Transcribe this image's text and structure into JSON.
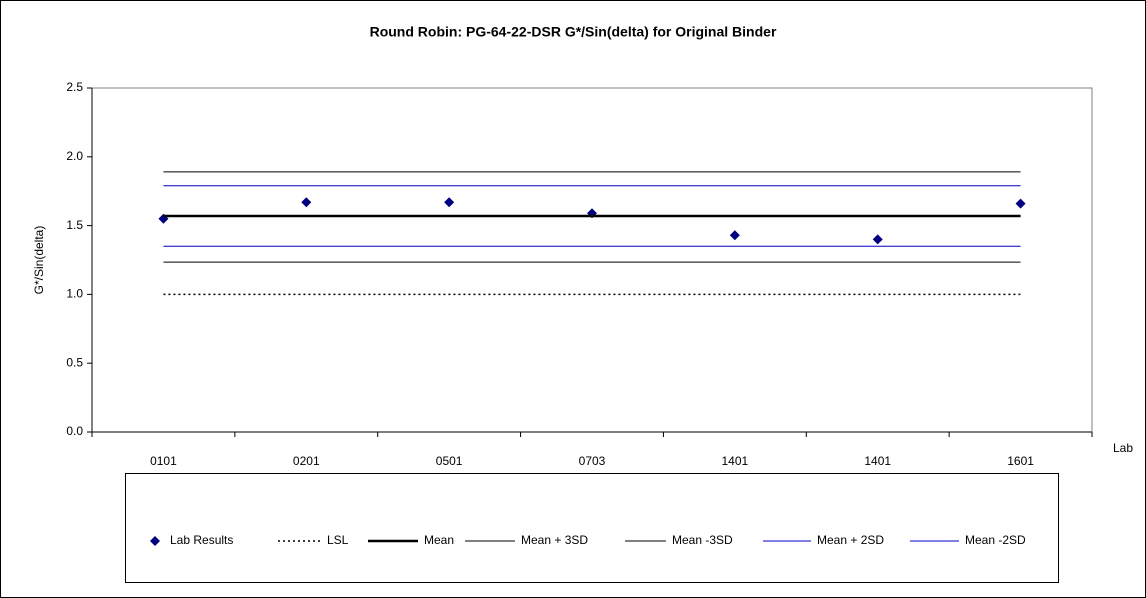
{
  "chart_data": {
    "type": "line",
    "title": "Round Robin: PG-64-22-DSR G*/Sin(delta) for Original Binder",
    "y_label": "G*/Sin(delta)",
    "x_label": "Lab",
    "categories": [
      "0101",
      "0201",
      "0501",
      "0703",
      "1401",
      "1401",
      "1601"
    ],
    "ylim": [
      0,
      2.5
    ],
    "yticks": [
      {
        "value": 0,
        "label": "0.0"
      },
      {
        "value": 0.5,
        "label": "0.5"
      },
      {
        "value": 1,
        "label": "1.0"
      },
      {
        "value": 1.5,
        "label": "1.5"
      },
      {
        "value": 2,
        "label": "2.0"
      },
      {
        "value": 2.5,
        "label": "2.5"
      }
    ],
    "legend": "bottom",
    "series": [
      {
        "name": "Lab Results",
        "color": "#000080",
        "style": "markers",
        "values": [
          1.55,
          1.67,
          1.67,
          1.59,
          1.43,
          1.4,
          1.66
        ]
      },
      {
        "name": "LSL",
        "color": "#000000",
        "style": "dotted",
        "values": [
          1,
          1,
          1,
          1,
          1,
          1,
          1
        ]
      },
      {
        "name": "Mean",
        "color": "#000000",
        "style": "bold",
        "values": [
          1.57,
          1.57,
          1.57,
          1.57,
          1.57,
          1.57,
          1.57
        ]
      },
      {
        "name": "Mean + 3SD",
        "color": "#000000",
        "style": "solid",
        "values": [
          1.89,
          1.89,
          1.89,
          1.89,
          1.89,
          1.89,
          1.89
        ]
      },
      {
        "name": "Mean -3SD",
        "color": "#000000",
        "style": "solid",
        "values": [
          1.235,
          1.235,
          1.235,
          1.235,
          1.235,
          1.235,
          1.235
        ]
      },
      {
        "name": "Mean + 2SD",
        "color": "#0000cc",
        "style": "solid",
        "values": [
          1.79,
          1.79,
          1.79,
          1.79,
          1.79,
          1.79,
          1.79
        ]
      },
      {
        "name": "Mean -2SD",
        "color": "#0000cc",
        "style": "solid",
        "values": [
          1.35,
          1.35,
          1.35,
          1.35,
          1.35,
          1.35,
          1.35
        ]
      }
    ]
  }
}
